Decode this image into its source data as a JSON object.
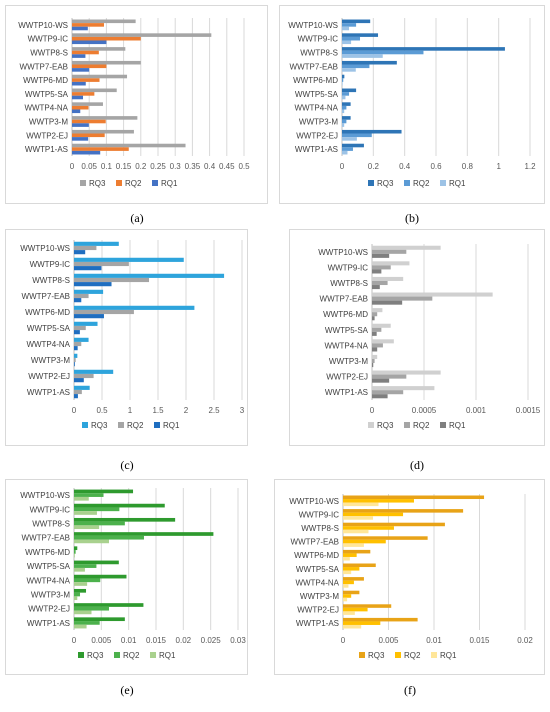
{
  "categories": [
    "WWTP1-AS",
    "WWTP2-EJ",
    "WWTP3-M",
    "WWTP4-NA",
    "WWTP5-SA",
    "WWTP6-MD",
    "WWTP7-EAB",
    "WWTP8-S",
    "WWTP9-IC",
    "WWTP10-WS"
  ],
  "chart_data": [
    {
      "type": "bar",
      "orientation": "horizontal",
      "panel_label": "(a)",
      "xlim": [
        0,
        0.5
      ],
      "xticks": [
        0,
        0.05,
        0.1,
        0.15,
        0.2,
        0.25,
        0.3,
        0.35,
        0.4,
        0.45,
        0.5
      ],
      "tick_labels": [
        "0",
        "0.05",
        "0.1",
        "0.15",
        "0.2",
        "0.25",
        "0.3",
        "0.35",
        "0.4",
        "0.45",
        "0.5"
      ],
      "grid": true,
      "legend_position": "bottom",
      "series": [
        {
          "name": "RQ3",
          "color": "#a5a5a5",
          "values": [
            0.33,
            0.18,
            0.19,
            0.09,
            0.13,
            0.16,
            0.2,
            0.155,
            0.405,
            0.185
          ]
        },
        {
          "name": "RQ2",
          "color": "#ed7d31",
          "values": [
            0.165,
            0.095,
            0.098,
            0.048,
            0.065,
            0.08,
            0.1,
            0.078,
            0.2,
            0.093
          ]
        },
        {
          "name": "RQ1",
          "color": "#4472c4",
          "values": [
            0.082,
            0.047,
            0.049,
            0.024,
            0.032,
            0.04,
            0.05,
            0.039,
            0.1,
            0.046
          ]
        }
      ]
    },
    {
      "type": "bar",
      "orientation": "horizontal",
      "panel_label": "(b)",
      "xlim": [
        0,
        1.2
      ],
      "xticks": [
        0,
        0.2,
        0.4,
        0.6,
        0.8,
        1,
        1.2
      ],
      "tick_labels": [
        "0",
        "0.2",
        "0.4",
        "0.6",
        "0.8",
        "1",
        "1.2"
      ],
      "grid": true,
      "legend_position": "bottom",
      "series": [
        {
          "name": "RQ3",
          "color": "#2e75b6",
          "values": [
            0.14,
            0.38,
            0.055,
            0.055,
            0.09,
            0.015,
            0.35,
            1.04,
            0.23,
            0.18
          ]
        },
        {
          "name": "RQ2",
          "color": "#5b9bd5",
          "values": [
            0.07,
            0.19,
            0.028,
            0.028,
            0.045,
            0.008,
            0.175,
            0.52,
            0.115,
            0.09
          ]
        },
        {
          "name": "RQ1",
          "color": "#9dc3e6",
          "values": [
            0.035,
            0.095,
            0.014,
            0.014,
            0.022,
            0.004,
            0.088,
            0.26,
            0.058,
            0.045
          ]
        }
      ]
    },
    {
      "type": "bar",
      "orientation": "horizontal",
      "panel_label": "(c)",
      "xlim": [
        0,
        3
      ],
      "xticks": [
        0,
        0.5,
        1,
        1.5,
        2,
        2.5,
        3
      ],
      "tick_labels": [
        "0",
        "0.5",
        "1",
        "1.5",
        "2",
        "2.5",
        "3"
      ],
      "grid": true,
      "legend_position": "bottom",
      "series": [
        {
          "name": "RQ3",
          "color": "#2ea4dc",
          "values": [
            0.28,
            0.7,
            0.06,
            0.26,
            0.42,
            2.15,
            0.52,
            2.68,
            1.96,
            0.8
          ]
        },
        {
          "name": "RQ2",
          "color": "#a5a5a5",
          "values": [
            0.14,
            0.35,
            0.03,
            0.13,
            0.21,
            1.07,
            0.26,
            1.34,
            0.98,
            0.4
          ]
        },
        {
          "name": "RQ1",
          "color": "#1f6ec0",
          "values": [
            0.07,
            0.175,
            0.015,
            0.065,
            0.105,
            0.535,
            0.13,
            0.67,
            0.49,
            0.2
          ]
        }
      ]
    },
    {
      "type": "bar",
      "orientation": "horizontal",
      "panel_label": "(d)",
      "xlim": [
        0,
        0.0015
      ],
      "xticks": [
        0,
        0.0005,
        0.001,
        0.0015
      ],
      "tick_labels": [
        "0",
        "0.0005",
        "0.001",
        "0.0015"
      ],
      "grid": true,
      "legend_position": "bottom",
      "series": [
        {
          "name": "RQ3",
          "color": "#d0d0d0",
          "values": [
            0.0006,
            0.00066,
            5e-05,
            0.00021,
            0.00018,
            0.0001,
            0.00116,
            0.0003,
            0.00036,
            0.00066
          ]
        },
        {
          "name": "RQ2",
          "color": "#a5a5a5",
          "values": [
            0.0003,
            0.00033,
            2.5e-05,
            0.000105,
            9e-05,
            5e-05,
            0.00058,
            0.00015,
            0.00018,
            0.00033
          ]
        },
        {
          "name": "RQ1",
          "color": "#7f7f7f",
          "values": [
            0.00015,
            0.000165,
            1.2e-05,
            5e-05,
            4.5e-05,
            2.5e-05,
            0.00029,
            7.5e-05,
            9e-05,
            0.000165
          ]
        }
      ]
    },
    {
      "type": "bar",
      "orientation": "horizontal",
      "panel_label": "(e)",
      "xlim": [
        0,
        0.03
      ],
      "xticks": [
        0,
        0.005,
        0.01,
        0.015,
        0.02,
        0.025,
        0.03
      ],
      "tick_labels": [
        "0",
        "0.005",
        "0.01",
        "0.015",
        "0.02",
        "0.025",
        "0.03"
      ],
      "grid": true,
      "legend_position": "bottom",
      "series": [
        {
          "name": "RQ3",
          "color": "#2e9a2e",
          "values": [
            0.0093,
            0.0127,
            0.0022,
            0.0096,
            0.0082,
            0.0006,
            0.0255,
            0.0185,
            0.0166,
            0.0108
          ]
        },
        {
          "name": "RQ2",
          "color": "#4cb14c",
          "values": [
            0.0047,
            0.0064,
            0.0011,
            0.0048,
            0.0041,
            0.0003,
            0.0128,
            0.0093,
            0.0083,
            0.0054
          ]
        },
        {
          "name": "RQ1",
          "color": "#a9d18e",
          "values": [
            0.0023,
            0.0032,
            0.0006,
            0.0024,
            0.002,
            0.00015,
            0.0064,
            0.0046,
            0.0042,
            0.0027
          ]
        }
      ]
    },
    {
      "type": "bar",
      "orientation": "horizontal",
      "panel_label": "(f)",
      "xlim": [
        0,
        0.02
      ],
      "xticks": [
        0,
        0.005,
        0.01,
        0.015,
        0.02
      ],
      "tick_labels": [
        "0",
        "0.005",
        "0.01",
        "0.015",
        "0.02"
      ],
      "grid": true,
      "legend_position": "bottom",
      "series": [
        {
          "name": "RQ3",
          "color": "#e8a317",
          "values": [
            0.0082,
            0.0053,
            0.0018,
            0.0023,
            0.0036,
            0.003,
            0.0093,
            0.0112,
            0.0132,
            0.0155
          ]
        },
        {
          "name": "RQ2",
          "color": "#ffc000",
          "values": [
            0.0041,
            0.0027,
            0.0009,
            0.0012,
            0.0018,
            0.0015,
            0.0047,
            0.0056,
            0.0066,
            0.0078
          ]
        },
        {
          "name": "RQ1",
          "color": "#ffe699",
          "values": [
            0.002,
            0.0013,
            0.00045,
            0.0006,
            0.0009,
            0.00075,
            0.0023,
            0.0028,
            0.0033,
            0.0039
          ]
        }
      ]
    }
  ]
}
